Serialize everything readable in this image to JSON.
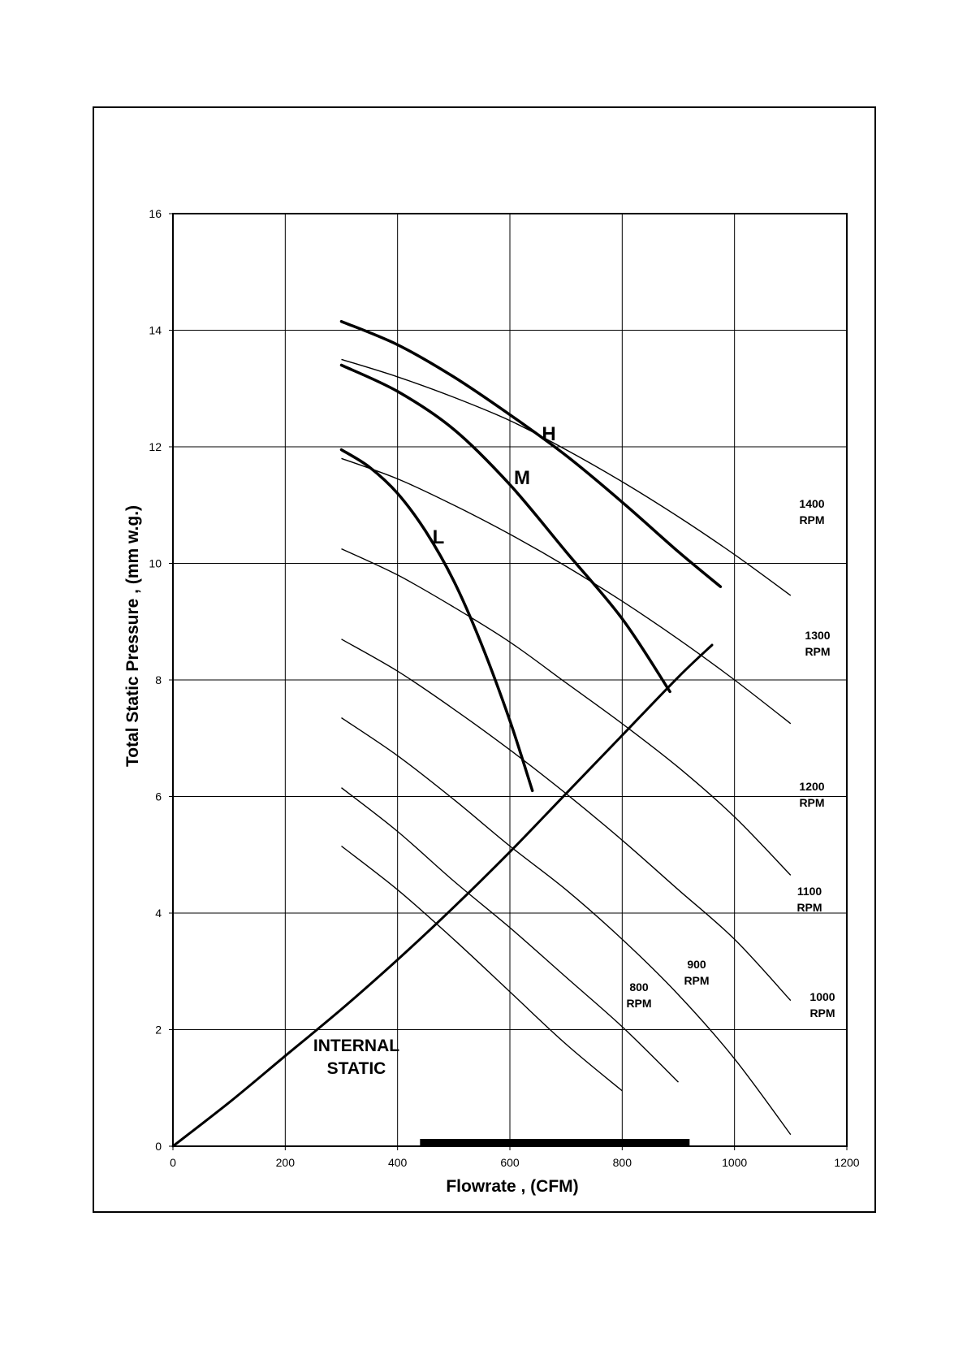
{
  "chart_data": {
    "type": "line",
    "title": "",
    "xlabel": "Flowrate , (CFM)",
    "ylabel": "Total Static Pressure , (mm w.g.)",
    "xlim": [
      0,
      1200
    ],
    "ylim": [
      0,
      16
    ],
    "xticks": [
      "0",
      "200",
      "400",
      "600",
      "800",
      "1000",
      "1200"
    ],
    "yticks": [
      "0",
      "2",
      "4",
      "6",
      "8",
      "10",
      "12",
      "14",
      "16"
    ],
    "grid": true,
    "rpm_series": [
      {
        "label": [
          "800",
          "RPM"
        ],
        "x": [
          300,
          400,
          500,
          600,
          700,
          800
        ],
        "y": [
          5.15,
          4.4,
          3.55,
          2.65,
          1.75,
          0.95
        ]
      },
      {
        "label": [
          "900",
          "RPM"
        ],
        "x": [
          300,
          400,
          500,
          600,
          700,
          800,
          900
        ],
        "y": [
          6.15,
          5.4,
          4.55,
          3.75,
          2.9,
          2.05,
          1.1
        ]
      },
      {
        "label": [
          "1000",
          "RPM"
        ],
        "x": [
          300,
          400,
          500,
          600,
          700,
          800,
          900,
          1000,
          1100
        ],
        "y": [
          7.35,
          6.7,
          5.95,
          5.15,
          4.4,
          3.55,
          2.6,
          1.5,
          0.2
        ]
      },
      {
        "label": [
          "1100",
          "RPM"
        ],
        "x": [
          300,
          400,
          500,
          600,
          700,
          800,
          900,
          1000,
          1100
        ],
        "y": [
          8.7,
          8.15,
          7.5,
          6.8,
          6.05,
          5.25,
          4.4,
          3.55,
          2.5
        ]
      },
      {
        "label": [
          "1200",
          "RPM"
        ],
        "x": [
          300,
          400,
          500,
          600,
          700,
          800,
          900,
          1000,
          1100
        ],
        "y": [
          10.25,
          9.8,
          9.25,
          8.65,
          7.95,
          7.25,
          6.5,
          5.65,
          4.65
        ]
      },
      {
        "label": [
          "1300",
          "RPM"
        ],
        "x": [
          300,
          400,
          500,
          600,
          700,
          800,
          900,
          1000,
          1100
        ],
        "y": [
          11.8,
          11.45,
          11.0,
          10.5,
          9.95,
          9.35,
          8.7,
          8.0,
          7.25
        ]
      },
      {
        "label": [
          "1400",
          "RPM"
        ],
        "x": [
          300,
          400,
          500,
          600,
          700,
          800,
          900,
          1000,
          1100
        ],
        "y": [
          13.5,
          13.2,
          12.85,
          12.45,
          11.95,
          11.4,
          10.8,
          10.15,
          9.45
        ]
      }
    ],
    "speed_series": [
      {
        "name": "H",
        "x": [
          300,
          400,
          500,
          600,
          700,
          800,
          900,
          975
        ],
        "y": [
          14.15,
          13.75,
          13.2,
          12.55,
          11.85,
          11.05,
          10.2,
          9.6
        ]
      },
      {
        "name": "M",
        "x": [
          300,
          400,
          500,
          600,
          700,
          800,
          885
        ],
        "y": [
          13.4,
          12.95,
          12.3,
          11.35,
          10.2,
          9.05,
          7.8
        ]
      },
      {
        "name": "L",
        "x": [
          300,
          350,
          400,
          450,
          500,
          550,
          600,
          640
        ],
        "y": [
          11.95,
          11.65,
          11.2,
          10.55,
          9.7,
          8.6,
          7.3,
          6.1
        ]
      }
    ],
    "internal_static": {
      "label": [
        "INTERNAL",
        "STATIC"
      ],
      "x": [
        0,
        100,
        200,
        300,
        400,
        500,
        600,
        700,
        800,
        900,
        960
      ],
      "y": [
        0,
        0.75,
        1.55,
        2.35,
        3.2,
        4.1,
        5.05,
        6.05,
        7.05,
        8.05,
        8.6
      ]
    },
    "operating_range": {
      "x": [
        440,
        920
      ],
      "y": 0.06
    }
  }
}
